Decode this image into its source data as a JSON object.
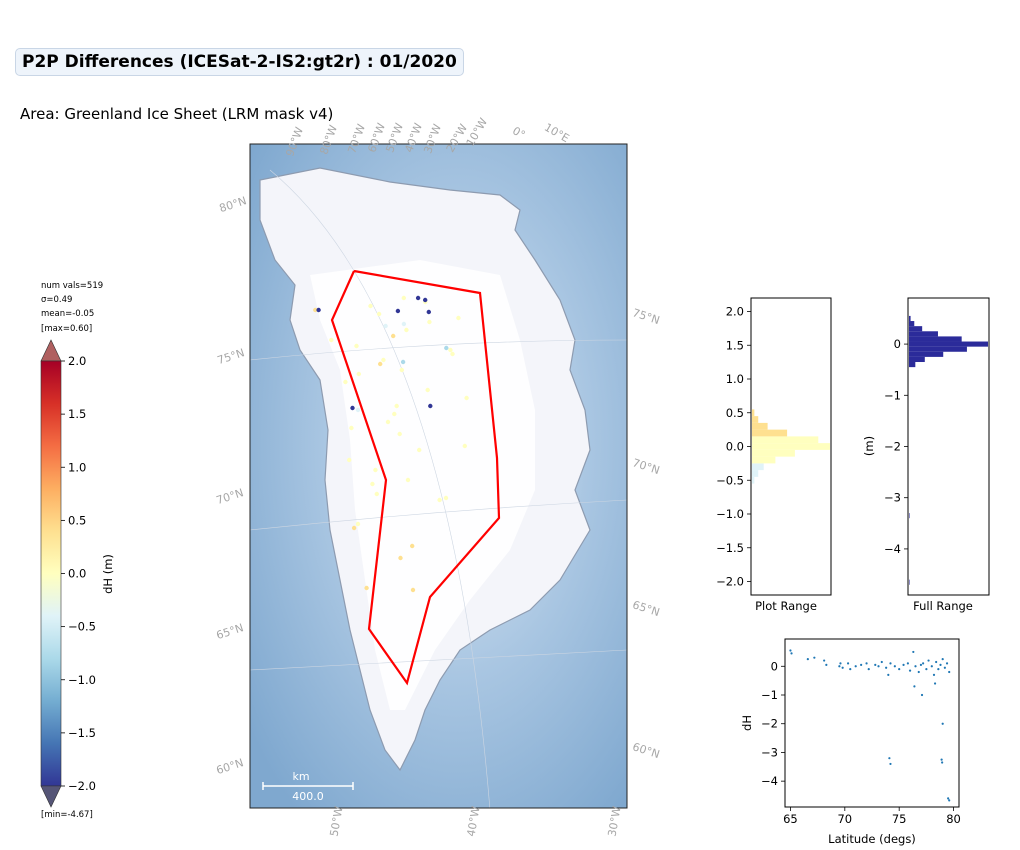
{
  "title": "P2P Differences (ICESat-2-IS2:gt2r) : 01/2020",
  "subtitle": "Area: Greenland Ice Sheet (LRM mask v4)",
  "stats": {
    "num_vals": "num vals=519",
    "sigma": "σ=0.49",
    "mean": "mean=-0.05",
    "max": "[max=0.60]",
    "min": "[min=-4.67]"
  },
  "colorbar": {
    "label": "dH (m)",
    "ticks": [
      "2.0",
      "1.5",
      "1.0",
      "0.5",
      "0.0",
      "−0.5",
      "−1.0",
      "−1.5",
      "−2.0"
    ],
    "range": [
      -2.0,
      2.0
    ],
    "colors": [
      "#313695",
      "#4575b4",
      "#74add1",
      "#abd9e9",
      "#e0f3f8",
      "#ffffbf",
      "#fee090",
      "#fdae61",
      "#f46d43",
      "#d73027",
      "#a50026"
    ]
  },
  "map": {
    "top_lon_labels": [
      "90°W",
      "80°W",
      "70°W",
      "60°W",
      "50°W",
      "40°W",
      "30°W",
      "20°W",
      "10°W",
      "0°",
      "10°E"
    ],
    "bottom_lon_labels": [
      "50°W",
      "40°W",
      "30°W"
    ],
    "left_lat_labels": [
      "80°N",
      "75°N",
      "70°N",
      "65°N",
      "60°N"
    ],
    "right_lat_labels": [
      "75°N",
      "70°N",
      "65°N",
      "60°N"
    ],
    "scalebar_unit": "km",
    "scalebar_value": "400.0",
    "polygon_color": "#ff0000"
  },
  "histograms": {
    "plot_range_label": "Plot Range",
    "plot_range_ticks": [
      "2.0",
      "1.5",
      "1.0",
      "0.5",
      "0.0",
      "−0.5",
      "−1.0",
      "−1.5",
      "−2.0"
    ],
    "full_range_label": "Full Range",
    "full_range_ticks": [
      "0",
      "−1",
      "−2",
      "−3",
      "−4"
    ],
    "full_range_ylabel": "(m)",
    "full_color": "#2b2b9a"
  },
  "chart_data": [
    {
      "type": "bar",
      "orientation": "horizontal",
      "title": "Plot Range",
      "ylim": [
        -2.2,
        2.2
      ],
      "bins_center": [
        -0.5,
        -0.4,
        -0.3,
        -0.2,
        -0.1,
        0.0,
        0.1,
        0.2,
        0.3,
        0.4,
        0.5
      ],
      "counts": [
        3,
        8,
        15,
        30,
        55,
        100,
        85,
        45,
        20,
        8,
        3
      ]
    },
    {
      "type": "bar",
      "orientation": "horizontal",
      "title": "Full Range",
      "ylabel": "(m)",
      "ylim": [
        -4.9,
        0.9
      ],
      "bins_center": [
        -4.65,
        -3.35,
        -0.4,
        -0.3,
        -0.2,
        -0.1,
        0.0,
        0.1,
        0.2,
        0.3,
        0.4,
        0.5
      ],
      "counts": [
        1,
        1,
        12,
        30,
        65,
        110,
        150,
        100,
        55,
        25,
        10,
        3
      ]
    },
    {
      "type": "scatter",
      "xlabel": "Latitude (degs)",
      "ylabel": "dH",
      "xlim": [
        64.5,
        80.5
      ],
      "ylim": [
        -4.9,
        0.95
      ],
      "xticks": [
        "65",
        "70",
        "75",
        "80"
      ],
      "yticks": [
        "0",
        "−1",
        "−2",
        "−3",
        "−4"
      ],
      "color": "#1f77b4",
      "points": [
        [
          65.0,
          0.55
        ],
        [
          65.1,
          0.45
        ],
        [
          66.6,
          0.25
        ],
        [
          67.2,
          0.3
        ],
        [
          68.1,
          0.2
        ],
        [
          68.3,
          0.05
        ],
        [
          69.5,
          0.0
        ],
        [
          69.6,
          0.1
        ],
        [
          69.8,
          -0.05
        ],
        [
          70.3,
          0.1
        ],
        [
          70.5,
          -0.1
        ],
        [
          71.0,
          0.0
        ],
        [
          71.5,
          0.05
        ],
        [
          72.0,
          0.1
        ],
        [
          72.2,
          -0.1
        ],
        [
          72.8,
          0.05
        ],
        [
          73.1,
          0.0
        ],
        [
          73.4,
          0.15
        ],
        [
          73.8,
          -0.05
        ],
        [
          74.0,
          -0.3
        ],
        [
          74.2,
          0.1
        ],
        [
          74.6,
          0.0
        ],
        [
          75.0,
          -0.1
        ],
        [
          75.4,
          0.05
        ],
        [
          75.8,
          0.1
        ],
        [
          76.0,
          -0.15
        ],
        [
          76.3,
          0.5
        ],
        [
          76.5,
          0.0
        ],
        [
          76.8,
          -0.2
        ],
        [
          77.0,
          0.05
        ],
        [
          77.2,
          0.1
        ],
        [
          77.5,
          -0.1
        ],
        [
          77.7,
          0.2
        ],
        [
          78.0,
          0.0
        ],
        [
          78.2,
          -0.3
        ],
        [
          78.4,
          0.15
        ],
        [
          78.6,
          -0.1
        ],
        [
          78.8,
          0.05
        ],
        [
          79.0,
          0.25
        ],
        [
          79.2,
          -0.05
        ],
        [
          79.4,
          0.1
        ],
        [
          79.6,
          -0.2
        ],
        [
          76.4,
          -0.7
        ],
        [
          77.1,
          -1.0
        ],
        [
          78.3,
          -0.6
        ],
        [
          79.0,
          -2.0
        ],
        [
          74.1,
          -3.2
        ],
        [
          74.2,
          -3.4
        ],
        [
          78.9,
          -3.25
        ],
        [
          78.95,
          -3.35
        ],
        [
          79.5,
          -4.6
        ],
        [
          79.6,
          -4.67
        ]
      ]
    }
  ]
}
